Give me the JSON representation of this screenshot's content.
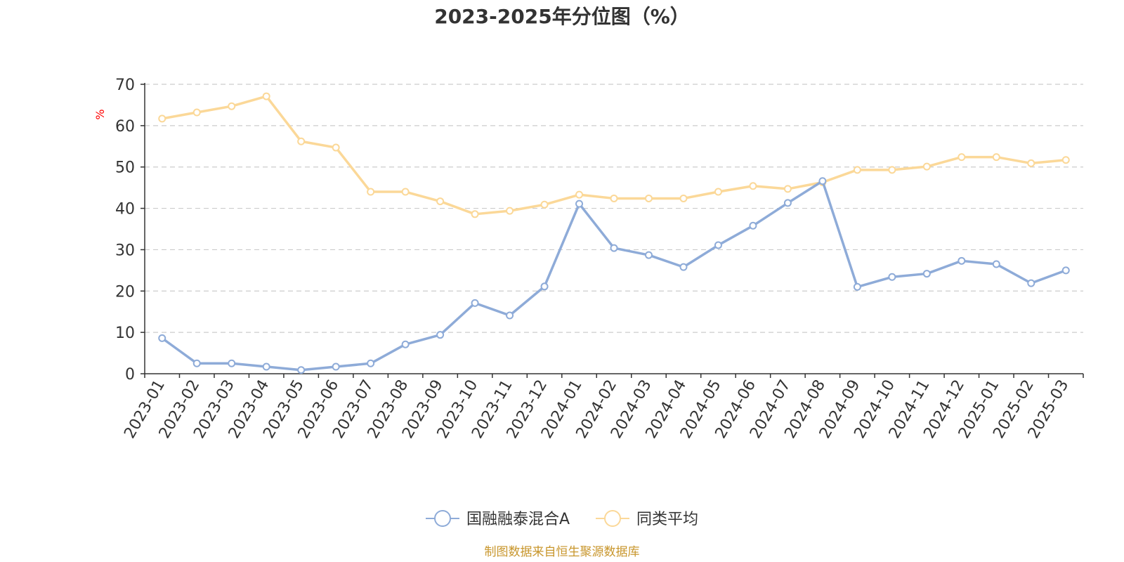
{
  "chart_data": {
    "type": "line",
    "title": "2023-2025年分位图（%）",
    "ylabel": "%",
    "ylim": [
      0,
      70
    ],
    "yticks": [
      0,
      10,
      20,
      30,
      40,
      50,
      60,
      70
    ],
    "grid": "horizontal dashed",
    "legend_position": "bottom-center",
    "categories": [
      "2023-01",
      "2023-02",
      "2023-03",
      "2023-04",
      "2023-05",
      "2023-06",
      "2023-07",
      "2023-08",
      "2023-09",
      "2023-10",
      "2023-11",
      "2023-12",
      "2024-01",
      "2024-02",
      "2024-03",
      "2024-04",
      "2024-05",
      "2024-06",
      "2024-07",
      "2024-08",
      "2024-09",
      "2024-10",
      "2024-11",
      "2024-12",
      "2025-01",
      "2025-02",
      "2025-03"
    ],
    "series": [
      {
        "name": "国融融泰混合A",
        "color": "#8eabd8",
        "values": [
          8.6,
          2.5,
          2.5,
          1.7,
          0.9,
          1.7,
          2.5,
          7.1,
          9.4,
          17.1,
          14.1,
          21.1,
          41.1,
          30.4,
          28.7,
          25.8,
          31.1,
          35.8,
          41.3,
          46.6,
          21.0,
          23.4,
          24.2,
          27.3,
          26.5,
          21.9,
          25.0
        ]
      },
      {
        "name": "同类平均",
        "color": "#fbd898",
        "values": [
          61.7,
          63.2,
          64.7,
          67.1,
          56.2,
          54.7,
          44.0,
          44.0,
          41.7,
          38.6,
          39.4,
          40.9,
          43.3,
          42.4,
          42.4,
          42.4,
          44.0,
          45.4,
          44.7,
          46.3,
          49.3,
          49.3,
          50.1,
          52.4,
          52.4,
          50.9,
          51.7
        ]
      }
    ]
  },
  "source": {
    "text": "制图数据来自恒生聚源数据库",
    "color": "#c8962c"
  }
}
